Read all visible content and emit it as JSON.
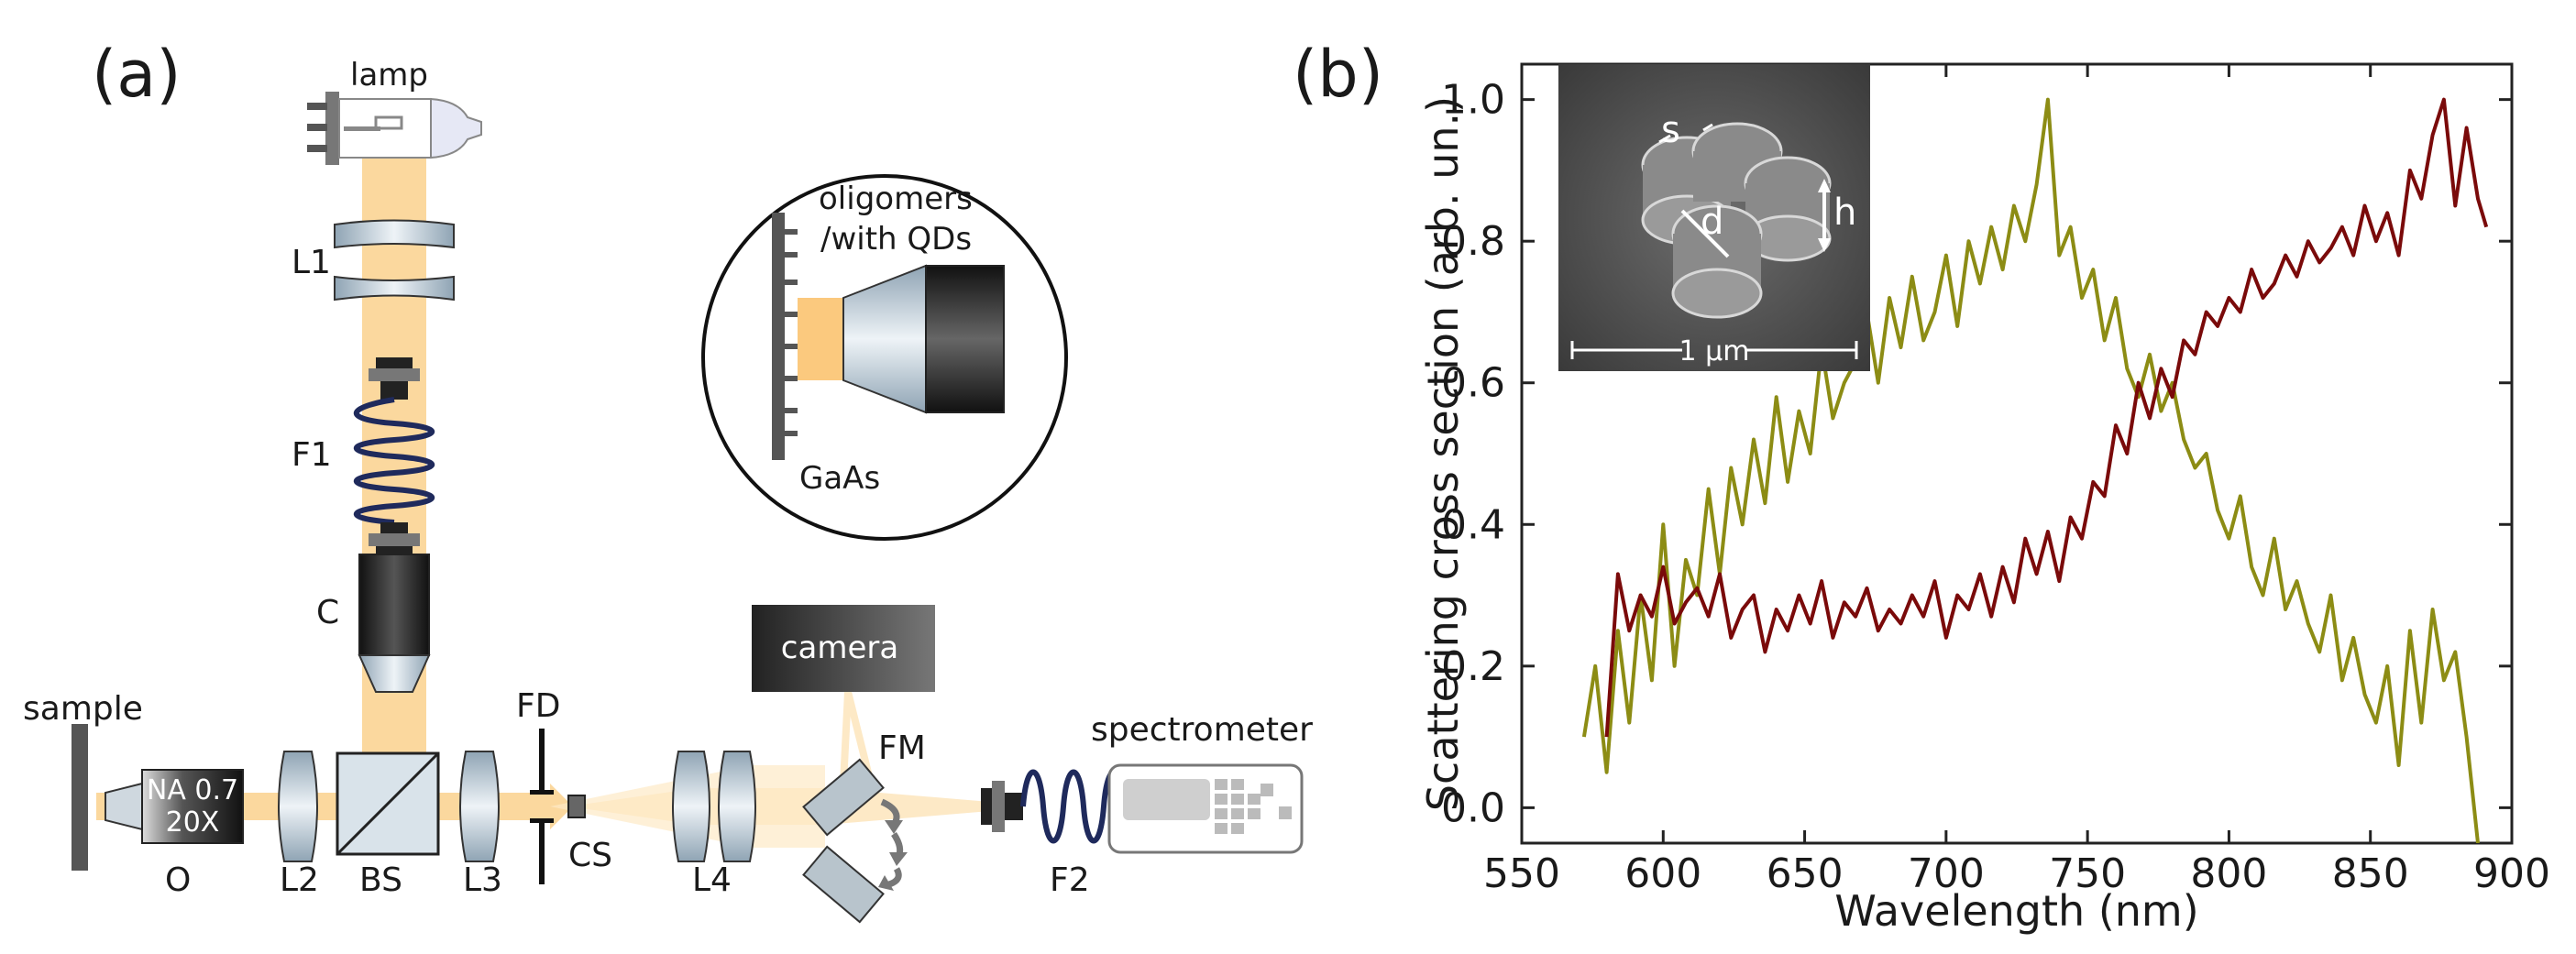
{
  "panel_a": {
    "panel_label": "(a)",
    "labels": {
      "lamp": "lamp",
      "L1": "L1",
      "F1": "F1",
      "C": "C",
      "sample": "sample",
      "O": "O",
      "objective_na": "NA 0.7",
      "objective_mag": "20X",
      "L2": "L2",
      "BS": "BS",
      "L3": "L3",
      "FD": "FD",
      "CS": "CS",
      "L4": "L4",
      "camera": "camera",
      "FM": "FM",
      "F2": "F2",
      "spectrometer": "spectrometer"
    },
    "inset": {
      "title_line1": "oligomers",
      "title_line2": "/with QDs",
      "substrate": "GaAs"
    },
    "colors": {
      "beam": "#fbd89e",
      "fiber": "#1f2a5c",
      "lens": "#b8cad6",
      "metal": "#555555"
    }
  },
  "panel_b": {
    "panel_label": "(b)",
    "sem_inset": {
      "label_s": "s",
      "label_d": "d",
      "label_h": "h",
      "scale": "1 µm"
    },
    "chart_data": {
      "type": "line",
      "title": "",
      "xlabel": "Wavelength (nm)",
      "ylabel": "Scattering cross section (arb. un.)",
      "xlim": [
        550,
        900
      ],
      "ylim": [
        -0.05,
        1.05
      ],
      "xticks": [
        550,
        600,
        650,
        700,
        750,
        800,
        850,
        900
      ],
      "yticks": [
        0.0,
        0.2,
        0.4,
        0.6,
        0.8,
        1.0
      ],
      "series": [
        {
          "name": "olive",
          "color": "#8c8c14",
          "x": [
            572,
            576,
            580,
            584,
            588,
            592,
            596,
            600,
            604,
            608,
            612,
            616,
            620,
            624,
            628,
            632,
            636,
            640,
            644,
            648,
            652,
            656,
            660,
            664,
            668,
            672,
            676,
            680,
            684,
            688,
            692,
            696,
            700,
            704,
            708,
            712,
            716,
            720,
            724,
            728,
            732,
            736,
            740,
            744,
            748,
            752,
            756,
            760,
            764,
            768,
            772,
            776,
            780,
            784,
            788,
            792,
            796,
            800,
            804,
            808,
            812,
            816,
            820,
            824,
            828,
            832,
            836,
            840,
            844,
            848,
            852,
            856,
            860,
            864,
            868,
            872,
            876,
            880,
            884,
            888
          ],
          "y": [
            0.1,
            0.2,
            0.05,
            0.25,
            0.12,
            0.3,
            0.18,
            0.4,
            0.2,
            0.35,
            0.3,
            0.45,
            0.33,
            0.48,
            0.4,
            0.52,
            0.43,
            0.58,
            0.46,
            0.56,
            0.5,
            0.65,
            0.55,
            0.6,
            0.63,
            0.7,
            0.6,
            0.72,
            0.65,
            0.75,
            0.66,
            0.7,
            0.78,
            0.68,
            0.8,
            0.74,
            0.82,
            0.76,
            0.85,
            0.8,
            0.88,
            1.0,
            0.78,
            0.82,
            0.72,
            0.76,
            0.66,
            0.72,
            0.62,
            0.58,
            0.64,
            0.56,
            0.6,
            0.52,
            0.48,
            0.5,
            0.42,
            0.38,
            0.44,
            0.34,
            0.3,
            0.38,
            0.28,
            0.32,
            0.26,
            0.22,
            0.3,
            0.18,
            0.24,
            0.16,
            0.12,
            0.2,
            0.06,
            0.25,
            0.12,
            0.28,
            0.18,
            0.22,
            0.1,
            -0.05
          ]
        },
        {
          "name": "dark red",
          "color": "#7a0a0a",
          "x": [
            580,
            584,
            588,
            592,
            596,
            600,
            604,
            608,
            612,
            616,
            620,
            624,
            628,
            632,
            636,
            640,
            644,
            648,
            652,
            656,
            660,
            664,
            668,
            672,
            676,
            680,
            684,
            688,
            692,
            696,
            700,
            704,
            708,
            712,
            716,
            720,
            724,
            728,
            732,
            736,
            740,
            744,
            748,
            752,
            756,
            760,
            764,
            768,
            772,
            776,
            780,
            784,
            788,
            792,
            796,
            800,
            804,
            808,
            812,
            816,
            820,
            824,
            828,
            832,
            836,
            840,
            844,
            848,
            852,
            856,
            860,
            864,
            868,
            872,
            876,
            880,
            884,
            888,
            891
          ],
          "y": [
            0.1,
            0.33,
            0.25,
            0.3,
            0.27,
            0.34,
            0.26,
            0.29,
            0.31,
            0.27,
            0.33,
            0.24,
            0.28,
            0.3,
            0.22,
            0.28,
            0.25,
            0.3,
            0.26,
            0.32,
            0.24,
            0.29,
            0.27,
            0.31,
            0.25,
            0.28,
            0.26,
            0.3,
            0.27,
            0.32,
            0.24,
            0.3,
            0.28,
            0.33,
            0.27,
            0.34,
            0.29,
            0.38,
            0.33,
            0.39,
            0.32,
            0.41,
            0.38,
            0.46,
            0.44,
            0.54,
            0.5,
            0.6,
            0.55,
            0.62,
            0.58,
            0.66,
            0.64,
            0.7,
            0.68,
            0.72,
            0.7,
            0.76,
            0.72,
            0.74,
            0.78,
            0.75,
            0.8,
            0.77,
            0.79,
            0.82,
            0.78,
            0.85,
            0.8,
            0.84,
            0.78,
            0.9,
            0.86,
            0.95,
            1.0,
            0.85,
            0.96,
            0.86,
            0.82
          ]
        }
      ]
    }
  }
}
